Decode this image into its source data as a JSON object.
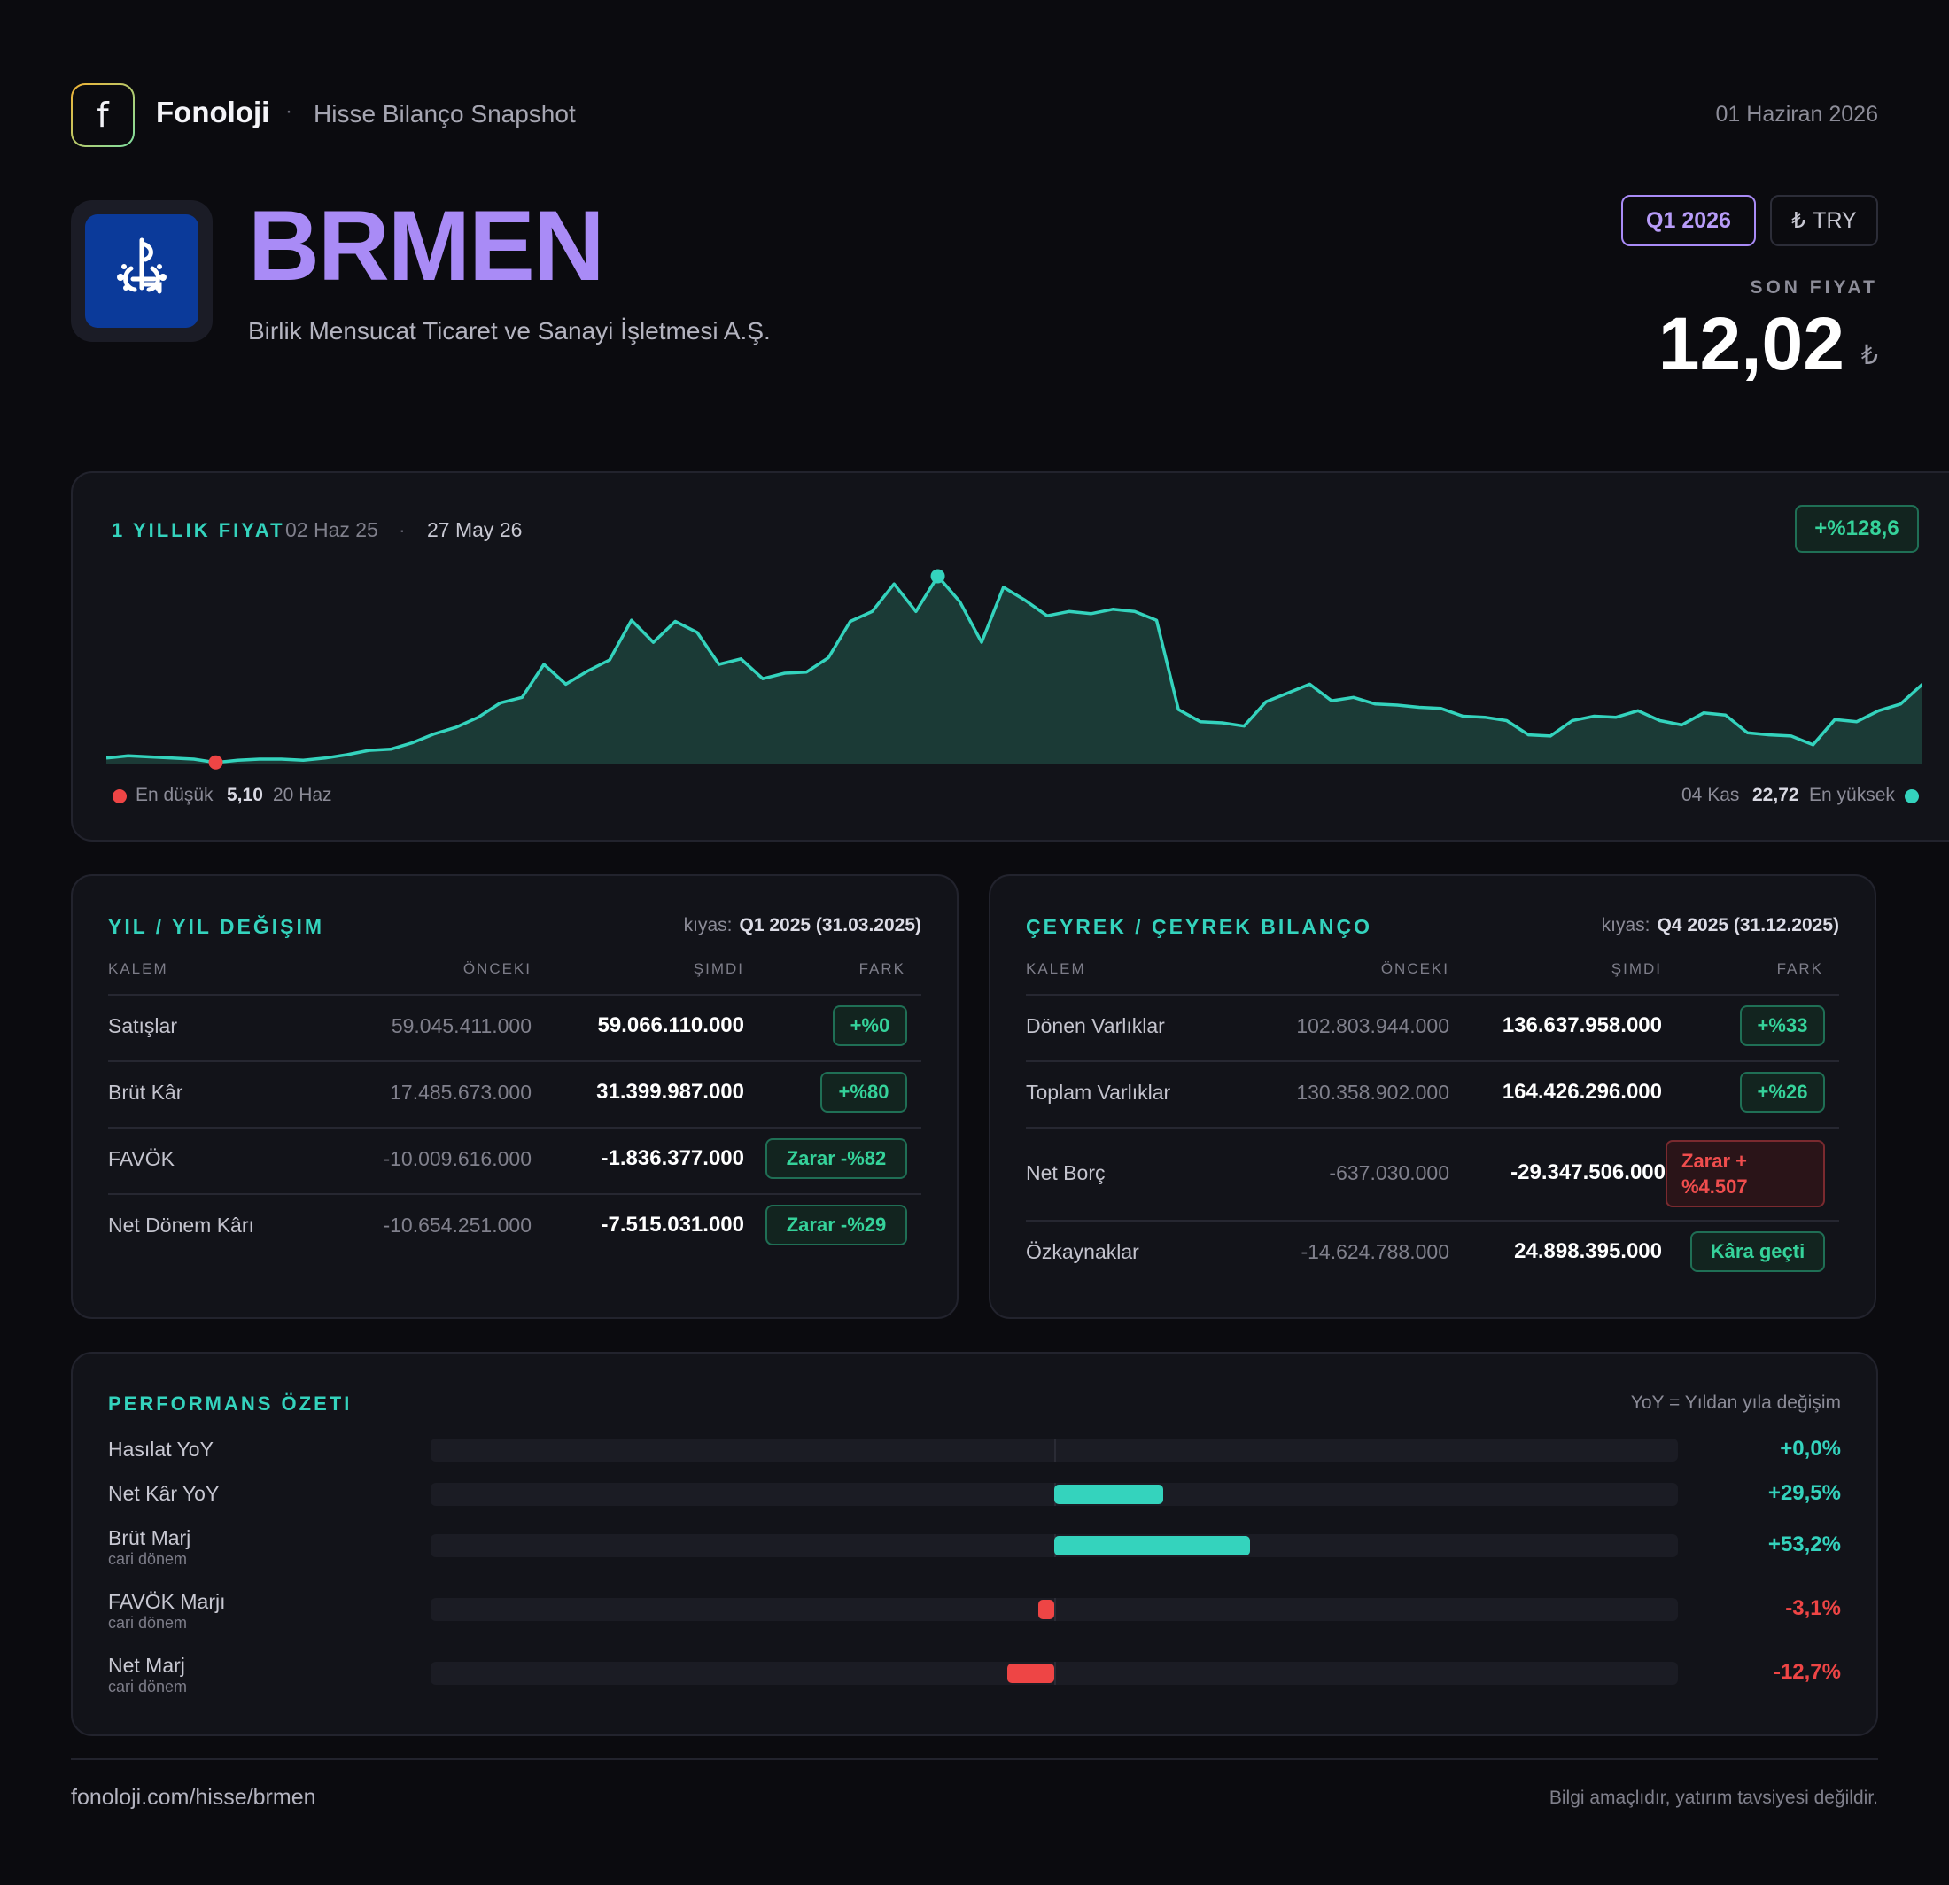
{
  "header": {
    "logo_letter": "f",
    "brand": "Fonoloji",
    "separator": "·",
    "subtitle": "Hisse Bilanço Snapshot",
    "date": "01 Haziran 2026"
  },
  "stock": {
    "ticker": "BRMEN",
    "company": "Birlik Mensucat Ticaret ve Sanayi İşletmesi A.Ş.",
    "period_badge": "Q1 2026",
    "currency_symbol": "₺",
    "currency_code": "TRY",
    "price_label": "SON FIYAT",
    "price": "12,02",
    "price_currency": "₺"
  },
  "chart": {
    "title": "1 YILLIK FIYAT",
    "start_date": "02 Haz 25",
    "separator": "·",
    "end_date": "27 May 26",
    "change": "+%128,6",
    "low_label": "En düşük",
    "low_value": "5,10",
    "low_date": "20 Haz",
    "high_date": "04 Kas",
    "high_value": "22,72",
    "high_label": "En yüksek",
    "colors": {
      "line": "#34d3bd",
      "fill": "#1b3a36",
      "low": "#ee4545",
      "high": "#34d3bd"
    }
  },
  "chart_data": {
    "type": "area",
    "ylim": [
      5,
      23
    ],
    "values": [
      5.5,
      5.7,
      5.6,
      5.5,
      5.4,
      5.1,
      5.3,
      5.4,
      5.4,
      5.3,
      5.5,
      5.8,
      6.2,
      6.3,
      6.9,
      7.7,
      8.3,
      9.2,
      10.5,
      11.0,
      14.0,
      12.2,
      13.4,
      14.4,
      18.0,
      16.0,
      17.9,
      16.9,
      14.0,
      14.5,
      12.7,
      13.2,
      13.3,
      14.6,
      17.9,
      18.8,
      21.3,
      18.8,
      22.0,
      19.7,
      16.0,
      21.0,
      19.8,
      18.4,
      18.8,
      18.6,
      19.0,
      18.8,
      18.0,
      9.9,
      8.8,
      8.7,
      8.4,
      10.6,
      11.4,
      12.2,
      10.7,
      11.0,
      10.4,
      10.3,
      10.1,
      10.0,
      9.3,
      9.2,
      8.9,
      7.6,
      7.5,
      8.9,
      9.3,
      9.2,
      9.8,
      8.9,
      8.5,
      9.6,
      9.4,
      7.8,
      7.6,
      7.5,
      6.7,
      9.0,
      8.8,
      9.8,
      10.4,
      12.2
    ]
  },
  "yoy": {
    "title": "YIL / YIL DEĞIŞIM",
    "compare_label": "kıyas:",
    "compare_value": "Q1 2025 (31.03.2025)",
    "headers": {
      "item": "KALEM",
      "prev": "ÖNCEKI",
      "now": "ŞIMDI",
      "diff": "FARK"
    },
    "rows": [
      {
        "label": "Satışlar",
        "prev": "59.045.411.000",
        "now": "59.066.110.000",
        "diff": "+%0",
        "tone": "pos"
      },
      {
        "label": "Brüt Kâr",
        "prev": "17.485.673.000",
        "now": "31.399.987.000",
        "diff": "+%80",
        "tone": "pos"
      },
      {
        "label": "FAVÖK",
        "prev": "-10.009.616.000",
        "now": "-1.836.377.000",
        "diff": "Zarar -%82",
        "tone": "pos"
      },
      {
        "label": "Net Dönem Kârı",
        "prev": "-10.654.251.000",
        "now": "-7.515.031.000",
        "diff": "Zarar -%29",
        "tone": "pos"
      }
    ]
  },
  "qoq": {
    "title": "ÇEYREK / ÇEYREK BILANÇO",
    "compare_label": "kıyas:",
    "compare_value": "Q4 2025 (31.12.2025)",
    "headers": {
      "item": "KALEM",
      "prev": "ÖNCEKI",
      "now": "ŞIMDI",
      "diff": "FARK"
    },
    "rows": [
      {
        "label": "Dönen Varlıklar",
        "prev": "102.803.944.000",
        "now": "136.637.958.000",
        "diff": "+%33",
        "tone": "pos"
      },
      {
        "label": "Toplam Varlıklar",
        "prev": "130.358.902.000",
        "now": "164.426.296.000",
        "diff": "+%26",
        "tone": "pos"
      },
      {
        "label": "Net Borç",
        "prev": "-637.030.000",
        "now": "-29.347.506.000",
        "diff_line1": "Zarar +",
        "diff_line2": "%4.507",
        "tone": "neg"
      },
      {
        "label": "Özkaynaklar",
        "prev": "-14.624.788.000",
        "now": "24.898.395.000",
        "diff": "Kâra geçti",
        "tone": "pos"
      }
    ]
  },
  "performance": {
    "title": "PERFORMANS ÖZETI",
    "note": "YoY = Yıldan yıla değişim",
    "rows": [
      {
        "label": "Hasılat YoY",
        "sub": "",
        "value_text": "+0,0%",
        "value": 0.0
      },
      {
        "label": "Net Kâr YoY",
        "sub": "",
        "value_text": "+29,5%",
        "value": 29.5
      },
      {
        "label": "Brüt Marj",
        "sub": "cari dönem",
        "value_text": "+53,2%",
        "value": 53.2
      },
      {
        "label": "FAVÖK Marjı",
        "sub": "cari dönem",
        "value_text": "-3,1%",
        "value": -3.1
      },
      {
        "label": "Net Marj",
        "sub": "cari dönem",
        "value_text": "-12,7%",
        "value": -12.7
      }
    ],
    "colors": {
      "pos": "#34d3bd",
      "neg": "#ee4545"
    }
  },
  "footer": {
    "url": "fonoloji.com/hisse/brmen",
    "disclaimer": "Bilgi amaçlıdır, yatırım tavsiyesi değildir."
  }
}
